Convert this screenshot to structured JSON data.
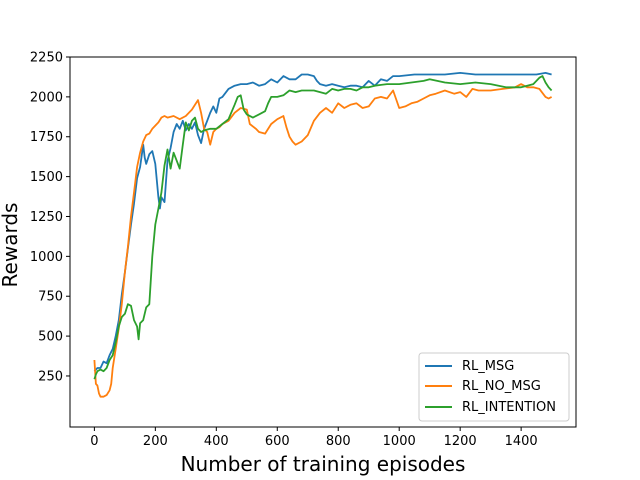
{
  "chart_data": {
    "type": "line",
    "title": "",
    "xlabel": "Number of training episodes",
    "ylabel": "Rewards",
    "xlim": [
      -80,
      1580
    ],
    "ylim": [
      -70,
      2250
    ],
    "x_ticks": [
      0,
      200,
      400,
      600,
      800,
      1000,
      1200,
      1400
    ],
    "y_ticks": [
      250,
      500,
      750,
      1000,
      1250,
      1500,
      1750,
      2000,
      2250
    ],
    "grid": false,
    "legend_position": "lower-right",
    "series": [
      {
        "name": "RL_MSG",
        "color": "#1f77b4",
        "points": [
          [
            0,
            280
          ],
          [
            10,
            300
          ],
          [
            20,
            300
          ],
          [
            30,
            340
          ],
          [
            40,
            330
          ],
          [
            50,
            380
          ],
          [
            60,
            420
          ],
          [
            70,
            500
          ],
          [
            80,
            600
          ],
          [
            90,
            760
          ],
          [
            100,
            900
          ],
          [
            110,
            1050
          ],
          [
            120,
            1200
          ],
          [
            130,
            1330
          ],
          [
            140,
            1490
          ],
          [
            150,
            1560
          ],
          [
            160,
            1700
          ],
          [
            165,
            1620
          ],
          [
            170,
            1580
          ],
          [
            180,
            1640
          ],
          [
            190,
            1660
          ],
          [
            200,
            1580
          ],
          [
            210,
            1370
          ],
          [
            215,
            1300
          ],
          [
            220,
            1370
          ],
          [
            230,
            1340
          ],
          [
            240,
            1600
          ],
          [
            250,
            1680
          ],
          [
            260,
            1780
          ],
          [
            270,
            1830
          ],
          [
            280,
            1800
          ],
          [
            290,
            1850
          ],
          [
            300,
            1790
          ],
          [
            310,
            1830
          ],
          [
            320,
            1800
          ],
          [
            330,
            1840
          ],
          [
            340,
            1760
          ],
          [
            350,
            1710
          ],
          [
            360,
            1800
          ],
          [
            370,
            1850
          ],
          [
            380,
            1900
          ],
          [
            390,
            1940
          ],
          [
            400,
            1900
          ],
          [
            410,
            1990
          ],
          [
            420,
            2000
          ],
          [
            440,
            2050
          ],
          [
            460,
            2070
          ],
          [
            480,
            2080
          ],
          [
            500,
            2080
          ],
          [
            520,
            2090
          ],
          [
            540,
            2070
          ],
          [
            560,
            2080
          ],
          [
            580,
            2110
          ],
          [
            600,
            2090
          ],
          [
            620,
            2130
          ],
          [
            640,
            2110
          ],
          [
            660,
            2110
          ],
          [
            680,
            2140
          ],
          [
            700,
            2140
          ],
          [
            720,
            2130
          ],
          [
            730,
            2100
          ],
          [
            740,
            2080
          ],
          [
            760,
            2070
          ],
          [
            780,
            2080
          ],
          [
            800,
            2070
          ],
          [
            820,
            2060
          ],
          [
            840,
            2070
          ],
          [
            860,
            2070
          ],
          [
            880,
            2060
          ],
          [
            900,
            2100
          ],
          [
            920,
            2070
          ],
          [
            940,
            2110
          ],
          [
            960,
            2100
          ],
          [
            980,
            2130
          ],
          [
            1000,
            2130
          ],
          [
            1050,
            2140
          ],
          [
            1100,
            2140
          ],
          [
            1150,
            2140
          ],
          [
            1200,
            2150
          ],
          [
            1250,
            2140
          ],
          [
            1300,
            2140
          ],
          [
            1350,
            2140
          ],
          [
            1400,
            2140
          ],
          [
            1450,
            2140
          ],
          [
            1480,
            2150
          ],
          [
            1500,
            2140
          ]
        ]
      },
      {
        "name": "RL_NO_MSG",
        "color": "#ff7f0e",
        "points": [
          [
            0,
            350
          ],
          [
            5,
            200
          ],
          [
            10,
            190
          ],
          [
            15,
            140
          ],
          [
            20,
            120
          ],
          [
            30,
            120
          ],
          [
            40,
            130
          ],
          [
            50,
            160
          ],
          [
            55,
            200
          ],
          [
            60,
            300
          ],
          [
            70,
            420
          ],
          [
            80,
            550
          ],
          [
            90,
            700
          ],
          [
            100,
            900
          ],
          [
            110,
            1060
          ],
          [
            120,
            1250
          ],
          [
            130,
            1400
          ],
          [
            140,
            1560
          ],
          [
            150,
            1650
          ],
          [
            160,
            1720
          ],
          [
            170,
            1760
          ],
          [
            180,
            1770
          ],
          [
            190,
            1800
          ],
          [
            200,
            1820
          ],
          [
            210,
            1840
          ],
          [
            220,
            1870
          ],
          [
            230,
            1880
          ],
          [
            240,
            1870
          ],
          [
            260,
            1880
          ],
          [
            280,
            1860
          ],
          [
            300,
            1880
          ],
          [
            320,
            1920
          ],
          [
            330,
            1950
          ],
          [
            340,
            1980
          ],
          [
            350,
            1900
          ],
          [
            360,
            1800
          ],
          [
            370,
            1780
          ],
          [
            380,
            1700
          ],
          [
            390,
            1780
          ],
          [
            400,
            1800
          ],
          [
            410,
            1810
          ],
          [
            420,
            1830
          ],
          [
            440,
            1850
          ],
          [
            460,
            1900
          ],
          [
            480,
            1930
          ],
          [
            500,
            1920
          ],
          [
            510,
            1830
          ],
          [
            530,
            1800
          ],
          [
            540,
            1780
          ],
          [
            560,
            1770
          ],
          [
            580,
            1830
          ],
          [
            600,
            1860
          ],
          [
            620,
            1880
          ],
          [
            630,
            1810
          ],
          [
            640,
            1750
          ],
          [
            650,
            1720
          ],
          [
            660,
            1700
          ],
          [
            680,
            1720
          ],
          [
            700,
            1760
          ],
          [
            720,
            1850
          ],
          [
            740,
            1900
          ],
          [
            760,
            1930
          ],
          [
            780,
            1900
          ],
          [
            800,
            1960
          ],
          [
            820,
            1930
          ],
          [
            840,
            1950
          ],
          [
            860,
            1960
          ],
          [
            880,
            1930
          ],
          [
            900,
            1940
          ],
          [
            920,
            1990
          ],
          [
            940,
            2000
          ],
          [
            960,
            1990
          ],
          [
            980,
            2040
          ],
          [
            1000,
            1930
          ],
          [
            1020,
            1940
          ],
          [
            1040,
            1960
          ],
          [
            1060,
            1970
          ],
          [
            1080,
            1990
          ],
          [
            1100,
            2010
          ],
          [
            1120,
            2020
          ],
          [
            1150,
            2040
          ],
          [
            1180,
            2020
          ],
          [
            1200,
            2030
          ],
          [
            1220,
            2000
          ],
          [
            1240,
            2050
          ],
          [
            1260,
            2040
          ],
          [
            1300,
            2040
          ],
          [
            1340,
            2050
          ],
          [
            1380,
            2060
          ],
          [
            1400,
            2080
          ],
          [
            1420,
            2060
          ],
          [
            1440,
            2060
          ],
          [
            1460,
            2050
          ],
          [
            1480,
            2000
          ],
          [
            1490,
            1990
          ],
          [
            1500,
            2000
          ]
        ]
      },
      {
        "name": "RL_INTENTION",
        "color": "#2ca02c",
        "points": [
          [
            0,
            230
          ],
          [
            5,
            260
          ],
          [
            10,
            280
          ],
          [
            20,
            290
          ],
          [
            30,
            280
          ],
          [
            40,
            300
          ],
          [
            50,
            350
          ],
          [
            60,
            380
          ],
          [
            70,
            460
          ],
          [
            80,
            560
          ],
          [
            90,
            620
          ],
          [
            100,
            640
          ],
          [
            110,
            700
          ],
          [
            120,
            690
          ],
          [
            130,
            600
          ],
          [
            140,
            560
          ],
          [
            145,
            480
          ],
          [
            150,
            580
          ],
          [
            160,
            600
          ],
          [
            170,
            680
          ],
          [
            180,
            700
          ],
          [
            190,
            1000
          ],
          [
            200,
            1200
          ],
          [
            210,
            1300
          ],
          [
            220,
            1400
          ],
          [
            230,
            1570
          ],
          [
            240,
            1670
          ],
          [
            250,
            1550
          ],
          [
            260,
            1650
          ],
          [
            270,
            1600
          ],
          [
            280,
            1550
          ],
          [
            290,
            1700
          ],
          [
            300,
            1840
          ],
          [
            310,
            1790
          ],
          [
            320,
            1850
          ],
          [
            330,
            1870
          ],
          [
            340,
            1800
          ],
          [
            350,
            1780
          ],
          [
            360,
            1790
          ],
          [
            380,
            1800
          ],
          [
            400,
            1800
          ],
          [
            420,
            1830
          ],
          [
            440,
            1860
          ],
          [
            460,
            1950
          ],
          [
            470,
            2000
          ],
          [
            480,
            2010
          ],
          [
            490,
            1920
          ],
          [
            500,
            1890
          ],
          [
            520,
            1870
          ],
          [
            540,
            1890
          ],
          [
            560,
            1910
          ],
          [
            570,
            1960
          ],
          [
            580,
            2000
          ],
          [
            600,
            2000
          ],
          [
            620,
            2010
          ],
          [
            640,
            2040
          ],
          [
            660,
            2030
          ],
          [
            680,
            2040
          ],
          [
            700,
            2040
          ],
          [
            720,
            2040
          ],
          [
            740,
            2030
          ],
          [
            760,
            2020
          ],
          [
            780,
            2050
          ],
          [
            800,
            2040
          ],
          [
            820,
            2050
          ],
          [
            840,
            2050
          ],
          [
            860,
            2040
          ],
          [
            880,
            2060
          ],
          [
            900,
            2060
          ],
          [
            920,
            2070
          ],
          [
            960,
            2080
          ],
          [
            1000,
            2080
          ],
          [
            1040,
            2090
          ],
          [
            1080,
            2100
          ],
          [
            1100,
            2110
          ],
          [
            1150,
            2090
          ],
          [
            1200,
            2080
          ],
          [
            1250,
            2090
          ],
          [
            1300,
            2080
          ],
          [
            1350,
            2060
          ],
          [
            1400,
            2060
          ],
          [
            1420,
            2070
          ],
          [
            1440,
            2080
          ],
          [
            1460,
            2120
          ],
          [
            1470,
            2130
          ],
          [
            1480,
            2090
          ],
          [
            1490,
            2060
          ],
          [
            1500,
            2040
          ]
        ]
      }
    ]
  }
}
